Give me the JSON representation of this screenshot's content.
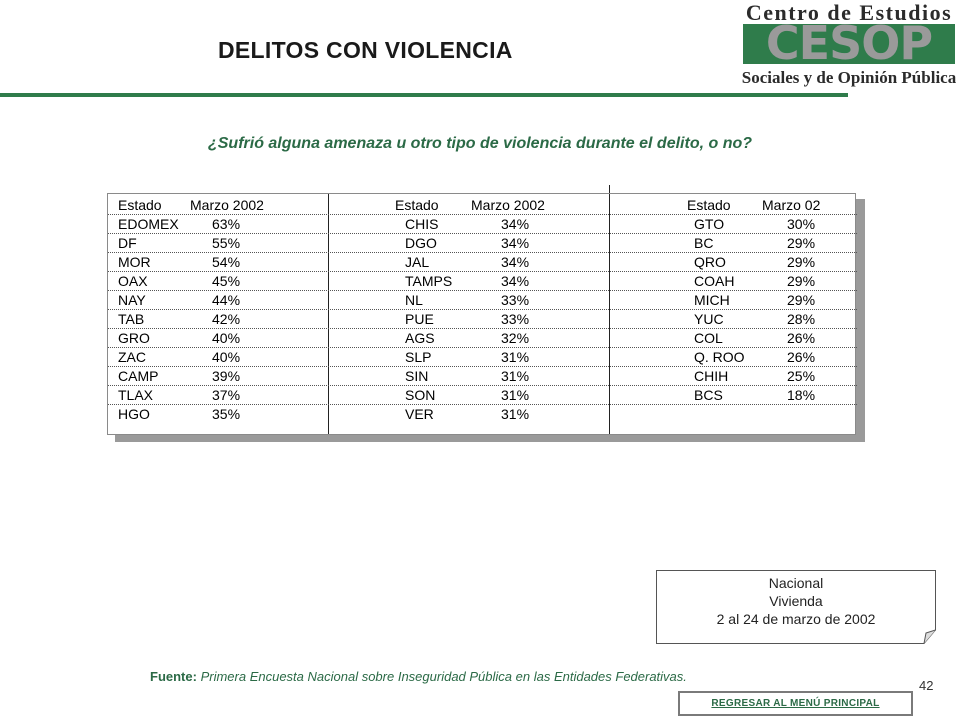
{
  "title": "DELITOS CON VIOLENCIA",
  "logo": {
    "top_text": "Centro de Estudios",
    "mark_text": "CESOP",
    "bottom_text": "Sociales y de Opinión Pública"
  },
  "question": "¿Sufrió alguna amenaza u otro tipo de violencia durante el delito, o no?",
  "table": {
    "columns": [
      {
        "header_state": "Estado",
        "header_value": "Marzo 2002",
        "rows": [
          {
            "state": "EDOMEX",
            "value": "63%"
          },
          {
            "state": "DF",
            "value": "55%"
          },
          {
            "state": "MOR",
            "value": "54%"
          },
          {
            "state": "OAX",
            "value": "45%"
          },
          {
            "state": "NAY",
            "value": "44%"
          },
          {
            "state": "TAB",
            "value": "42%"
          },
          {
            "state": "GRO",
            "value": "40%"
          },
          {
            "state": "ZAC",
            "value": "40%"
          },
          {
            "state": "CAMP",
            "value": "39%"
          },
          {
            "state": "TLAX",
            "value": "37%"
          },
          {
            "state": "HGO",
            "value": "35%"
          }
        ]
      },
      {
        "header_state": "Estado",
        "header_value": "Marzo 2002",
        "rows": [
          {
            "state": "CHIS",
            "value": "34%"
          },
          {
            "state": "DGO",
            "value": "34%"
          },
          {
            "state": "JAL",
            "value": "34%"
          },
          {
            "state": "TAMPS",
            "value": "34%"
          },
          {
            "state": "NL",
            "value": "33%"
          },
          {
            "state": "PUE",
            "value": "33%"
          },
          {
            "state": "AGS",
            "value": "32%"
          },
          {
            "state": "SLP",
            "value": "31%"
          },
          {
            "state": "SIN",
            "value": "31%"
          },
          {
            "state": "SON",
            "value": "31%"
          },
          {
            "state": "VER",
            "value": "31%"
          }
        ]
      },
      {
        "header_state": "Estado",
        "header_value": "Marzo 02",
        "rows": [
          {
            "state": "GTO",
            "value": "30%"
          },
          {
            "state": "BC",
            "value": "29%"
          },
          {
            "state": "QRO",
            "value": "29%"
          },
          {
            "state": "COAH",
            "value": "29%"
          },
          {
            "state": "MICH",
            "value": "29%"
          },
          {
            "state": "YUC",
            "value": "28%"
          },
          {
            "state": "COL",
            "value": "26%"
          },
          {
            "state": "Q. ROO",
            "value": "26%"
          },
          {
            "state": "CHIH",
            "value": "25%"
          },
          {
            "state": "BCS",
            "value": "18%"
          },
          {
            "state": "",
            "value": ""
          }
        ]
      }
    ]
  },
  "note": {
    "line1": "Nacional",
    "line2": "Vivienda",
    "line3": "2 al 24 de marzo de 2002"
  },
  "source": {
    "label": "Fuente:",
    "text": "Primera Encuesta Nacional sobre Inseguridad Pública en las Entidades Federativas."
  },
  "page_number": "42",
  "menu_button": "REGRESAR AL MENÚ PRINCIPAL",
  "colors": {
    "accent_green": "#2b6a46",
    "rule_green": "#2f7c4b",
    "logo_gray": "#8c8c8c"
  }
}
